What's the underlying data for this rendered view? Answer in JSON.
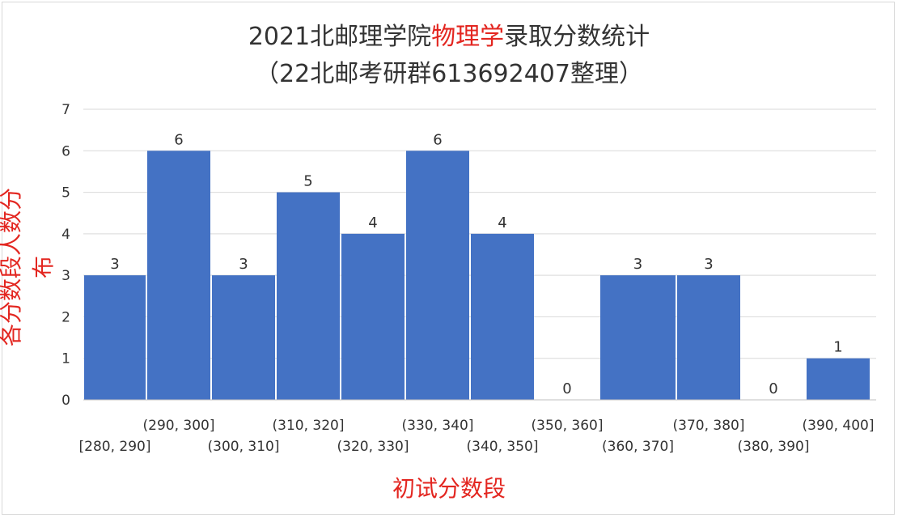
{
  "title_part1": "2021北邮理学院",
  "title_highlight": "物理学",
  "title_part2": "录取分数统计",
  "subtitle": "（22北邮考研群613692407整理）",
  "chart_data": {
    "type": "bar",
    "title": "2021北邮理学院物理学录取分数统计",
    "subtitle": "（22北邮考研群613692407整理）",
    "xlabel": "初试分数段",
    "ylabel": "各分数段人数分布",
    "ylim": [
      0,
      7
    ],
    "yticks": [
      0,
      1,
      2,
      3,
      4,
      5,
      6,
      7
    ],
    "grid": true,
    "categories": [
      "[280, 290]",
      "(290, 300]",
      "(300, 310]",
      "(310, 320]",
      "(320, 330]",
      "(330, 340]",
      "(340, 350]",
      "(350, 360]",
      "(360, 370]",
      "(370, 380]",
      "(380, 390]",
      "(390, 400]"
    ],
    "values": [
      3,
      6,
      3,
      5,
      4,
      6,
      4,
      0,
      3,
      3,
      0,
      1
    ],
    "colors": {
      "bar": "#4472c4",
      "highlight_text": "#e32620",
      "axis_label": "#e32620"
    }
  }
}
